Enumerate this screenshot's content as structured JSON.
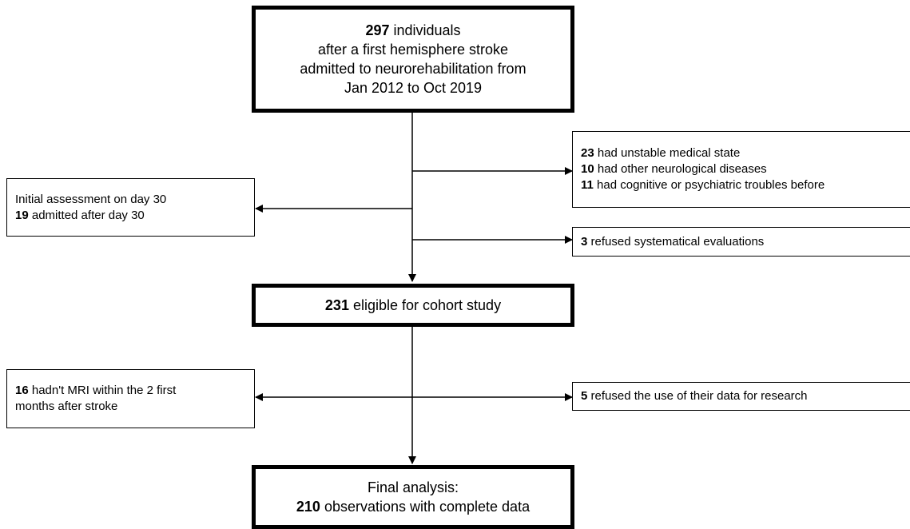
{
  "top_box": {
    "line1_bold": "297",
    "line1_rest": " individuals",
    "line2": "after a first hemisphere stroke",
    "line3": "admitted to neurorehabilitation from",
    "line4": "Jan 2012 to Oct 2019"
  },
  "exclusion_right_1": {
    "item1_bold": "23",
    "item1_rest": " had unstable medical state",
    "item2_bold": "10",
    "item2_rest": " had other neurological diseases",
    "item3_bold": "11",
    "item3_rest": " had cognitive or psychiatric troubles before"
  },
  "exclusion_left_1": {
    "line1": "Initial assessment on day 30",
    "line2_bold": "19",
    "line2_rest": " admitted after day 30"
  },
  "exclusion_right_2": {
    "bold": "3",
    "rest": " refused systematical evaluations"
  },
  "eligible_box": {
    "bold": "231",
    "rest": " eligible  for cohort study"
  },
  "exclusion_left_2": {
    "line1_bold": "16",
    "line1_rest": " hadn't MRI within the 2 first",
    "line2": "months after stroke"
  },
  "exclusion_right_3": {
    "bold": "5",
    "rest": " refused the use of their data for research"
  },
  "final_box": {
    "line1": "Final analysis:",
    "line2_bold": "210",
    "line2_rest": " observations with complete data"
  }
}
